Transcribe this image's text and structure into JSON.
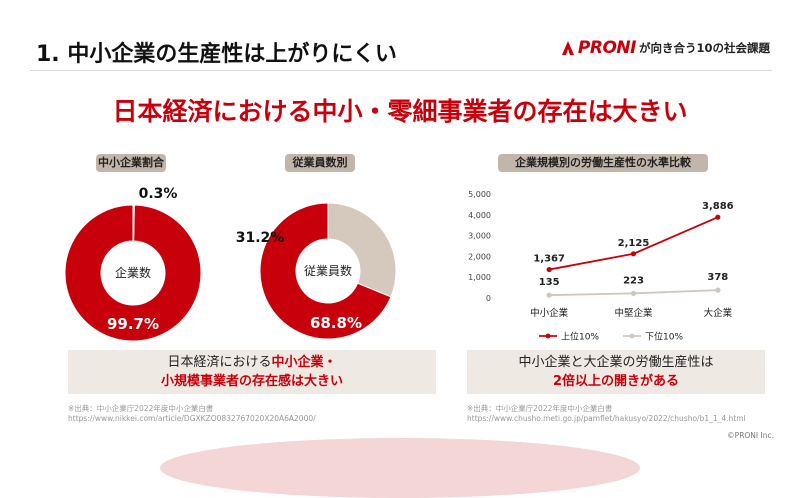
{
  "header": {
    "title": "1.  中小企業の生産性は上がりにくい",
    "brand_logo": "PRONI",
    "brand_tagline": "が向き合う10の社会課題"
  },
  "headline": "日本経済における中小・零細事業者の存在は大きい",
  "colors": {
    "accent": "#c7000b",
    "secondary": "#d5c8bc",
    "pill": "#c2b6aa",
    "caption_bg": "#efe9e4"
  },
  "left_panel": {
    "pill_sme": "中小企業割合",
    "pill_employees": "従業員数別",
    "caption": {
      "line1_plain": "日本経済における",
      "line1_red": "中小企業・",
      "line2_red": "小規模事業者の存在感は大きい"
    },
    "source_label": "※出典：中小企業庁2022年度中小企業白書",
    "source_url": "https://www.nikkei.com/article/DGXKZO0832767020X20A6A2000/"
  },
  "right_panel": {
    "pill": "企業規模別の労働生産性の水準比較",
    "caption": {
      "line1": "中小企業と大企業の労働生産性は",
      "line2_red": "2倍以上の開きがある"
    },
    "source_label": "※出典：中小企業庁2022年度中小企業白書",
    "source_url": "https://www.chusho.meti.go.jp/pamflet/hakusyo/2022/chusho/b1_1_4.html"
  },
  "copyright": "©PRONI Inc.",
  "chart_data": [
    {
      "type": "pie",
      "variant": "donut",
      "center_label": "企業数",
      "slices": [
        {
          "label": "99.7%",
          "value": 99.7,
          "color": "#c7000b"
        },
        {
          "label": "0.3%",
          "value": 0.3,
          "color": "#d5c8bc"
        }
      ]
    },
    {
      "type": "pie",
      "variant": "donut",
      "center_label": "従業員数",
      "slices": [
        {
          "label": "68.8%",
          "value": 68.8,
          "color": "#c7000b"
        },
        {
          "label": "31.2%",
          "value": 31.2,
          "color": "#d5c8bc"
        }
      ]
    },
    {
      "type": "line",
      "categories": [
        "中小企業",
        "中堅企業",
        "大企業"
      ],
      "ylim": [
        0,
        5000
      ],
      "yticks": [
        0,
        1000,
        2000,
        3000,
        4000,
        5000
      ],
      "ytick_labels": [
        "0",
        "1,000",
        "2,000",
        "3,000",
        "4,000",
        "5,000"
      ],
      "grid": false,
      "legend_position": "bottom",
      "series": [
        {
          "name": "上位10%",
          "values": [
            1367,
            2125,
            3886
          ],
          "labels": [
            "1,367",
            "2,125",
            "3,886"
          ],
          "color": "#c7000b"
        },
        {
          "name": "下位10%",
          "values": [
            135,
            223,
            378
          ],
          "labels": [
            "135",
            "223",
            "378"
          ],
          "color": "#cfc6bc"
        }
      ]
    }
  ]
}
